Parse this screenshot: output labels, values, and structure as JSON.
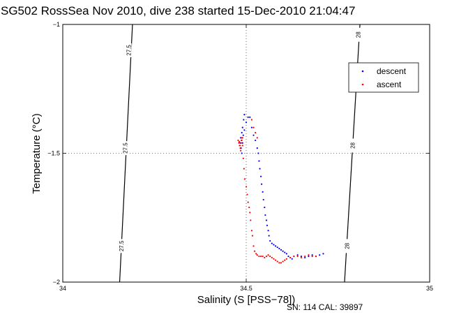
{
  "chart_data": {
    "type": "scatter",
    "title": "SG502 RossSea Nov 2010, dive 238 started 15-Dec-2010 21:04:47",
    "xlabel": "Salinity (S [PSS−78])",
    "ylabel": "Temperature (°C)",
    "xlim": [
      34,
      35
    ],
    "ylim": [
      -2,
      -1
    ],
    "x_ticks": [
      "34",
      "34.5",
      "35"
    ],
    "y_ticks": [
      "−1",
      "−1.5",
      "−2"
    ],
    "x_tick_values": [
      34,
      34.5,
      35
    ],
    "y_tick_values": [
      -1,
      -1.5,
      -2
    ],
    "grid": "dotted",
    "legend_position": "top-right",
    "footer": "SN: 114  CAL: 39897",
    "density_contours": [
      {
        "label": "27.5",
        "line": [
          [
            34.155,
            -2.0
          ],
          [
            34.19,
            -1.0
          ]
        ],
        "labels_at": [
          [
            34.18,
            -1.1
          ],
          [
            34.17,
            -1.48
          ],
          [
            34.16,
            -1.86
          ]
        ]
      },
      {
        "label": "28",
        "line": [
          [
            34.768,
            -2.0
          ],
          [
            34.81,
            -1.0
          ]
        ],
        "labels_at": [
          [
            34.805,
            -1.04
          ],
          [
            34.79,
            -1.47
          ],
          [
            34.775,
            -1.86
          ]
        ]
      }
    ],
    "series": [
      {
        "name": "descent",
        "color": "#0000ff",
        "points": [
          [
            34.495,
            -1.35
          ],
          [
            34.493,
            -1.37
          ],
          [
            34.49,
            -1.4
          ],
          [
            34.488,
            -1.42
          ],
          [
            34.485,
            -1.44
          ],
          [
            34.484,
            -1.46
          ],
          [
            34.486,
            -1.48
          ],
          [
            34.488,
            -1.5
          ],
          [
            34.49,
            -1.46
          ],
          [
            34.487,
            -1.45
          ],
          [
            34.492,
            -1.43
          ],
          [
            34.495,
            -1.41
          ],
          [
            34.5,
            -1.38
          ],
          [
            34.505,
            -1.36
          ],
          [
            34.51,
            -1.36
          ],
          [
            34.515,
            -1.4
          ],
          [
            34.52,
            -1.43
          ],
          [
            34.525,
            -1.45
          ],
          [
            34.53,
            -1.48
          ],
          [
            34.533,
            -1.5
          ],
          [
            34.535,
            -1.53
          ],
          [
            34.537,
            -1.56
          ],
          [
            34.54,
            -1.59
          ],
          [
            34.542,
            -1.62
          ],
          [
            34.545,
            -1.65
          ],
          [
            34.547,
            -1.68
          ],
          [
            34.55,
            -1.71
          ],
          [
            34.552,
            -1.74
          ],
          [
            34.555,
            -1.76
          ],
          [
            34.557,
            -1.78
          ],
          [
            34.56,
            -1.8
          ],
          [
            34.562,
            -1.82
          ],
          [
            34.565,
            -1.84
          ],
          [
            34.57,
            -1.85
          ],
          [
            34.575,
            -1.855
          ],
          [
            34.58,
            -1.86
          ],
          [
            34.585,
            -1.865
          ],
          [
            34.59,
            -1.87
          ],
          [
            34.595,
            -1.875
          ],
          [
            34.6,
            -1.88
          ],
          [
            34.605,
            -1.885
          ],
          [
            34.61,
            -1.89
          ],
          [
            34.615,
            -1.9
          ],
          [
            34.62,
            -1.905
          ],
          [
            34.625,
            -1.91
          ],
          [
            34.63,
            -1.9
          ],
          [
            34.64,
            -1.895
          ],
          [
            34.65,
            -1.9
          ],
          [
            34.66,
            -1.905
          ],
          [
            34.67,
            -1.9
          ],
          [
            34.68,
            -1.895
          ],
          [
            34.69,
            -1.9
          ],
          [
            34.7,
            -1.895
          ],
          [
            34.71,
            -1.89
          ]
        ]
      },
      {
        "name": "ascent",
        "color": "#ff0000",
        "points": [
          [
            34.478,
            -1.45
          ],
          [
            34.48,
            -1.46
          ],
          [
            34.482,
            -1.47
          ],
          [
            34.484,
            -1.48
          ],
          [
            34.486,
            -1.46
          ],
          [
            34.488,
            -1.45
          ],
          [
            34.49,
            -1.47
          ],
          [
            34.485,
            -1.49
          ],
          [
            34.483,
            -1.47
          ],
          [
            34.481,
            -1.455
          ],
          [
            34.487,
            -1.44
          ],
          [
            34.49,
            -1.44
          ],
          [
            34.492,
            -1.52
          ],
          [
            34.494,
            -1.56
          ],
          [
            34.496,
            -1.6
          ],
          [
            34.5,
            -1.63
          ],
          [
            34.503,
            -1.66
          ],
          [
            34.505,
            -1.69
          ],
          [
            34.508,
            -1.71
          ],
          [
            34.51,
            -1.73
          ],
          [
            34.512,
            -1.76
          ],
          [
            34.515,
            -1.8
          ],
          [
            34.517,
            -1.82
          ],
          [
            34.52,
            -1.86
          ],
          [
            34.523,
            -1.88
          ],
          [
            34.527,
            -1.89
          ],
          [
            34.53,
            -1.895
          ],
          [
            34.535,
            -1.9
          ],
          [
            34.54,
            -1.9
          ],
          [
            34.545,
            -1.9
          ],
          [
            34.55,
            -1.905
          ],
          [
            34.555,
            -1.9
          ],
          [
            34.56,
            -1.895
          ],
          [
            34.565,
            -1.9
          ],
          [
            34.57,
            -1.905
          ],
          [
            34.575,
            -1.91
          ],
          [
            34.58,
            -1.915
          ],
          [
            34.585,
            -1.92
          ],
          [
            34.59,
            -1.925
          ],
          [
            34.595,
            -1.925
          ],
          [
            34.6,
            -1.92
          ],
          [
            34.605,
            -1.915
          ],
          [
            34.61,
            -1.91
          ],
          [
            34.62,
            -1.905
          ],
          [
            34.63,
            -1.9
          ],
          [
            34.64,
            -1.9
          ],
          [
            34.65,
            -1.905
          ],
          [
            34.66,
            -1.9
          ],
          [
            34.67,
            -1.895
          ],
          [
            34.68,
            -1.9
          ],
          [
            34.69,
            -1.9
          ],
          [
            34.52,
            -1.4
          ],
          [
            34.525,
            -1.42
          ],
          [
            34.515,
            -1.37
          ],
          [
            34.53,
            -1.44
          ]
        ]
      }
    ]
  }
}
